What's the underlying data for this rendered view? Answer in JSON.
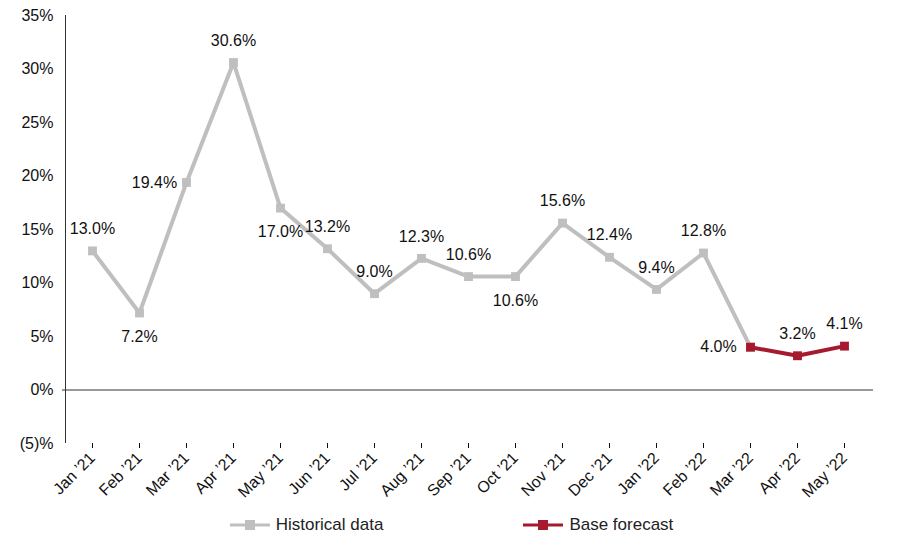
{
  "chart_data": {
    "type": "line",
    "categories": [
      "Jan ’21",
      "Feb ’21",
      "Mar ’21",
      "Apr ’21",
      "May ’21",
      "Jun ’21",
      "Jul ’21",
      "Aug ’21",
      "Sep ’21",
      "Oct ’21",
      "Nov ’21",
      "Dec ’21",
      "Jan ’22",
      "Feb ’22",
      "Mar ’22",
      "Apr ’22",
      "May ’22"
    ],
    "series": [
      {
        "name": "Historical data",
        "color": "#bfbfbf",
        "marker": "square",
        "values": [
          13.0,
          7.2,
          19.4,
          30.6,
          17.0,
          13.2,
          9.0,
          12.3,
          10.6,
          10.6,
          15.6,
          12.4,
          9.4,
          12.8,
          4.0,
          null,
          null
        ],
        "value_labels": [
          "13.0%",
          "7.2%",
          "19.4%",
          "30.6%",
          "17.0%",
          "13.2%",
          "9.0%",
          "12.3%",
          "10.6%",
          "10.6%",
          "15.6%",
          "12.4%",
          "9.4%",
          "12.8%",
          "4.0%",
          null,
          null
        ]
      },
      {
        "name": "Base forecast",
        "color": "#a6192e",
        "marker": "square",
        "values": [
          null,
          null,
          null,
          null,
          null,
          null,
          null,
          null,
          null,
          null,
          null,
          null,
          null,
          null,
          4.0,
          3.2,
          4.1
        ],
        "value_labels": [
          null,
          null,
          null,
          null,
          null,
          null,
          null,
          null,
          null,
          null,
          null,
          null,
          null,
          null,
          null,
          "3.2%",
          "4.1%"
        ]
      }
    ],
    "ylim": [
      -5,
      35
    ],
    "yticks": [
      {
        "value": -5,
        "label": "(5)%"
      },
      {
        "value": 0,
        "label": "0%"
      },
      {
        "value": 5,
        "label": "5%"
      },
      {
        "value": 10,
        "label": "10%"
      },
      {
        "value": 15,
        "label": "15%"
      },
      {
        "value": 20,
        "label": "20%"
      },
      {
        "value": 25,
        "label": "25%"
      },
      {
        "value": 30,
        "label": "30%"
      },
      {
        "value": 35,
        "label": "35%"
      }
    ],
    "grid": false,
    "data_labels": true,
    "legend": "bottom"
  }
}
